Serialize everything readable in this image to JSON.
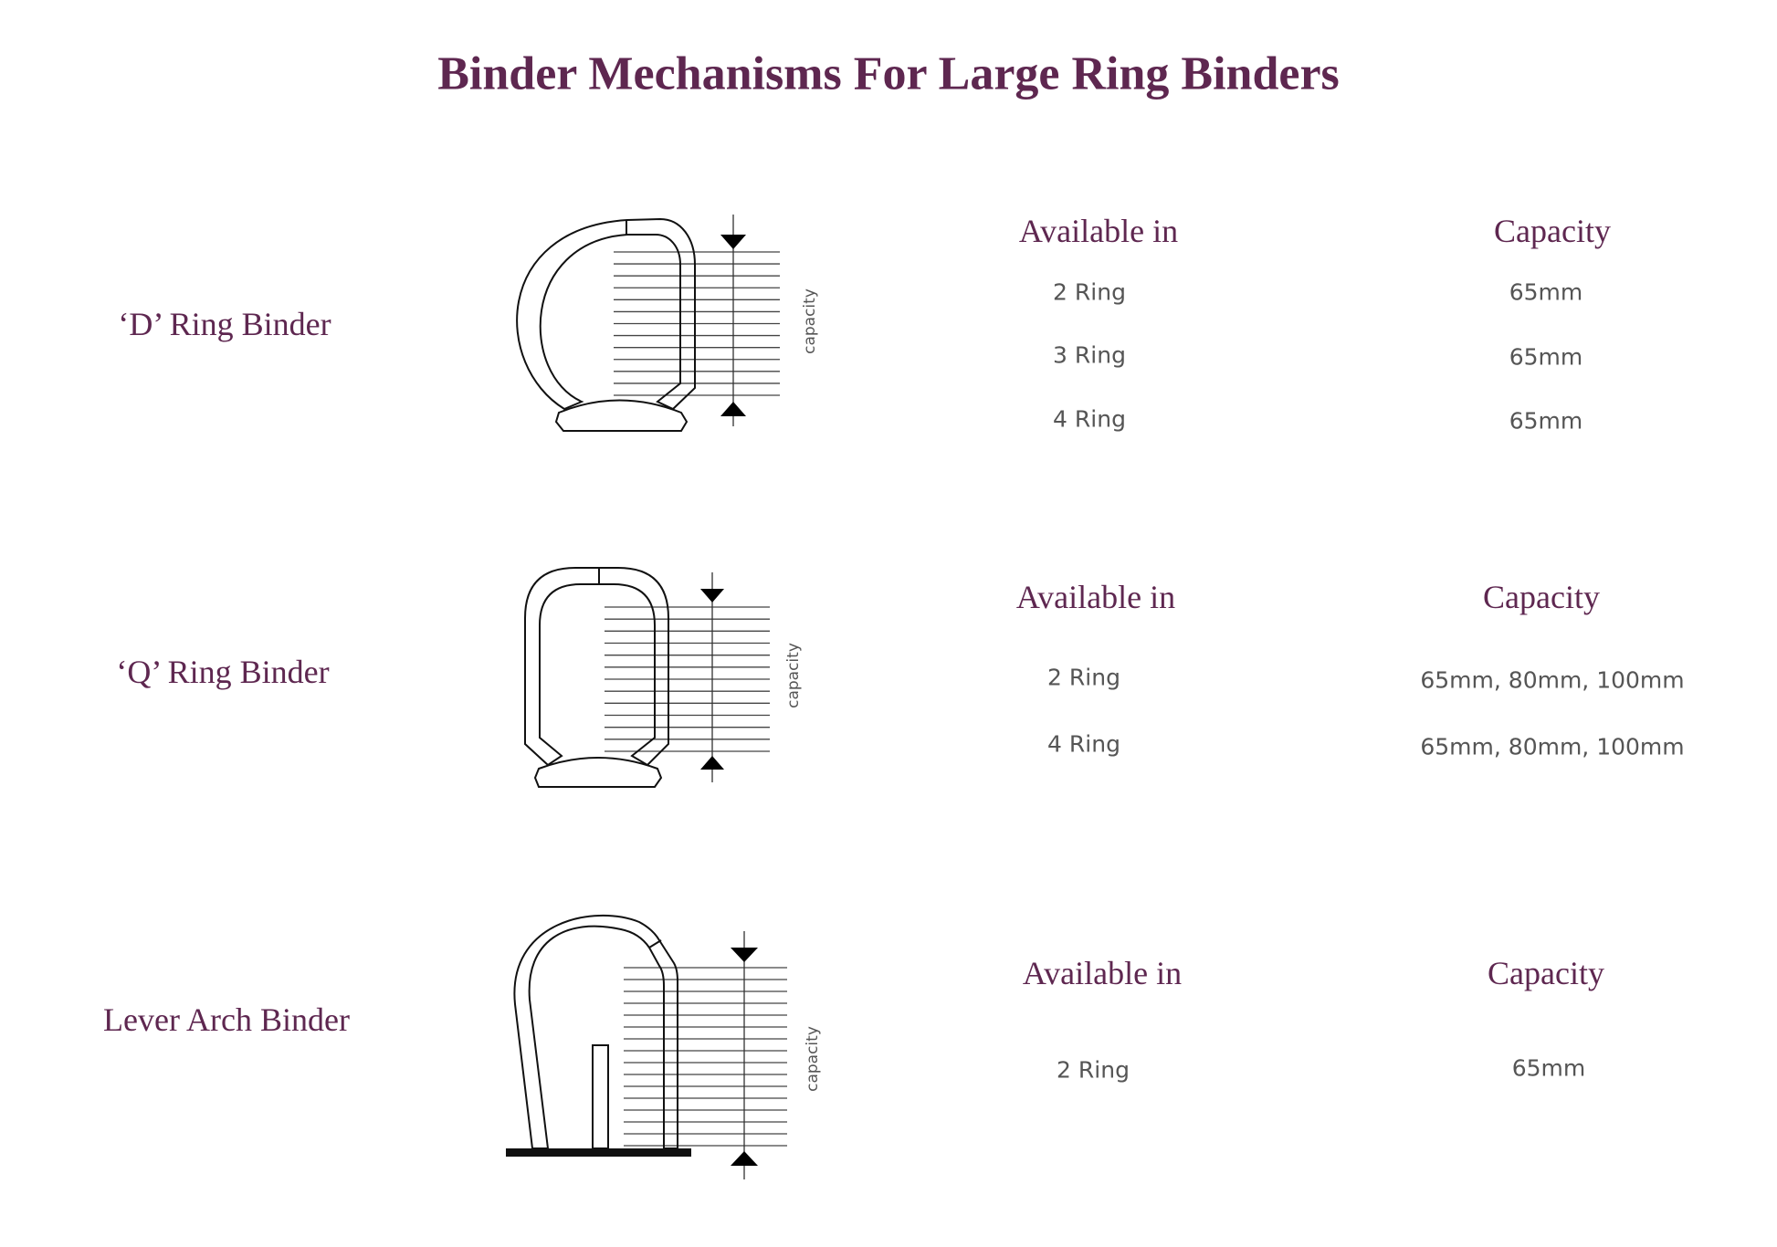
{
  "title": "Binder Mechanisms For Large Ring Binders",
  "colors": {
    "heading": "#5e2750",
    "body_text": "#555555"
  },
  "binders": [
    {
      "name": "‘D’ Ring Binder",
      "available_header": "Available in",
      "capacity_header": "Capacity",
      "diagram_label": "capacity",
      "rows": [
        {
          "rings": "2 Ring",
          "capacity": "65mm"
        },
        {
          "rings": "3 Ring",
          "capacity": "65mm"
        },
        {
          "rings": "4 Ring",
          "capacity": "65mm"
        }
      ]
    },
    {
      "name": "‘Q’ Ring Binder",
      "available_header": "Available in",
      "capacity_header": "Capacity",
      "diagram_label": "capacity",
      "rows": [
        {
          "rings": "2 Ring",
          "capacity": "65mm,  80mm,  100mm"
        },
        {
          "rings": "4 Ring",
          "capacity": "65mm,  80mm,  100mm"
        }
      ]
    },
    {
      "name": "Lever Arch Binder",
      "available_header": "Available in",
      "capacity_header": "Capacity",
      "diagram_label": "capacity",
      "rows": [
        {
          "rings": "2 Ring",
          "capacity": "65mm"
        }
      ]
    }
  ]
}
